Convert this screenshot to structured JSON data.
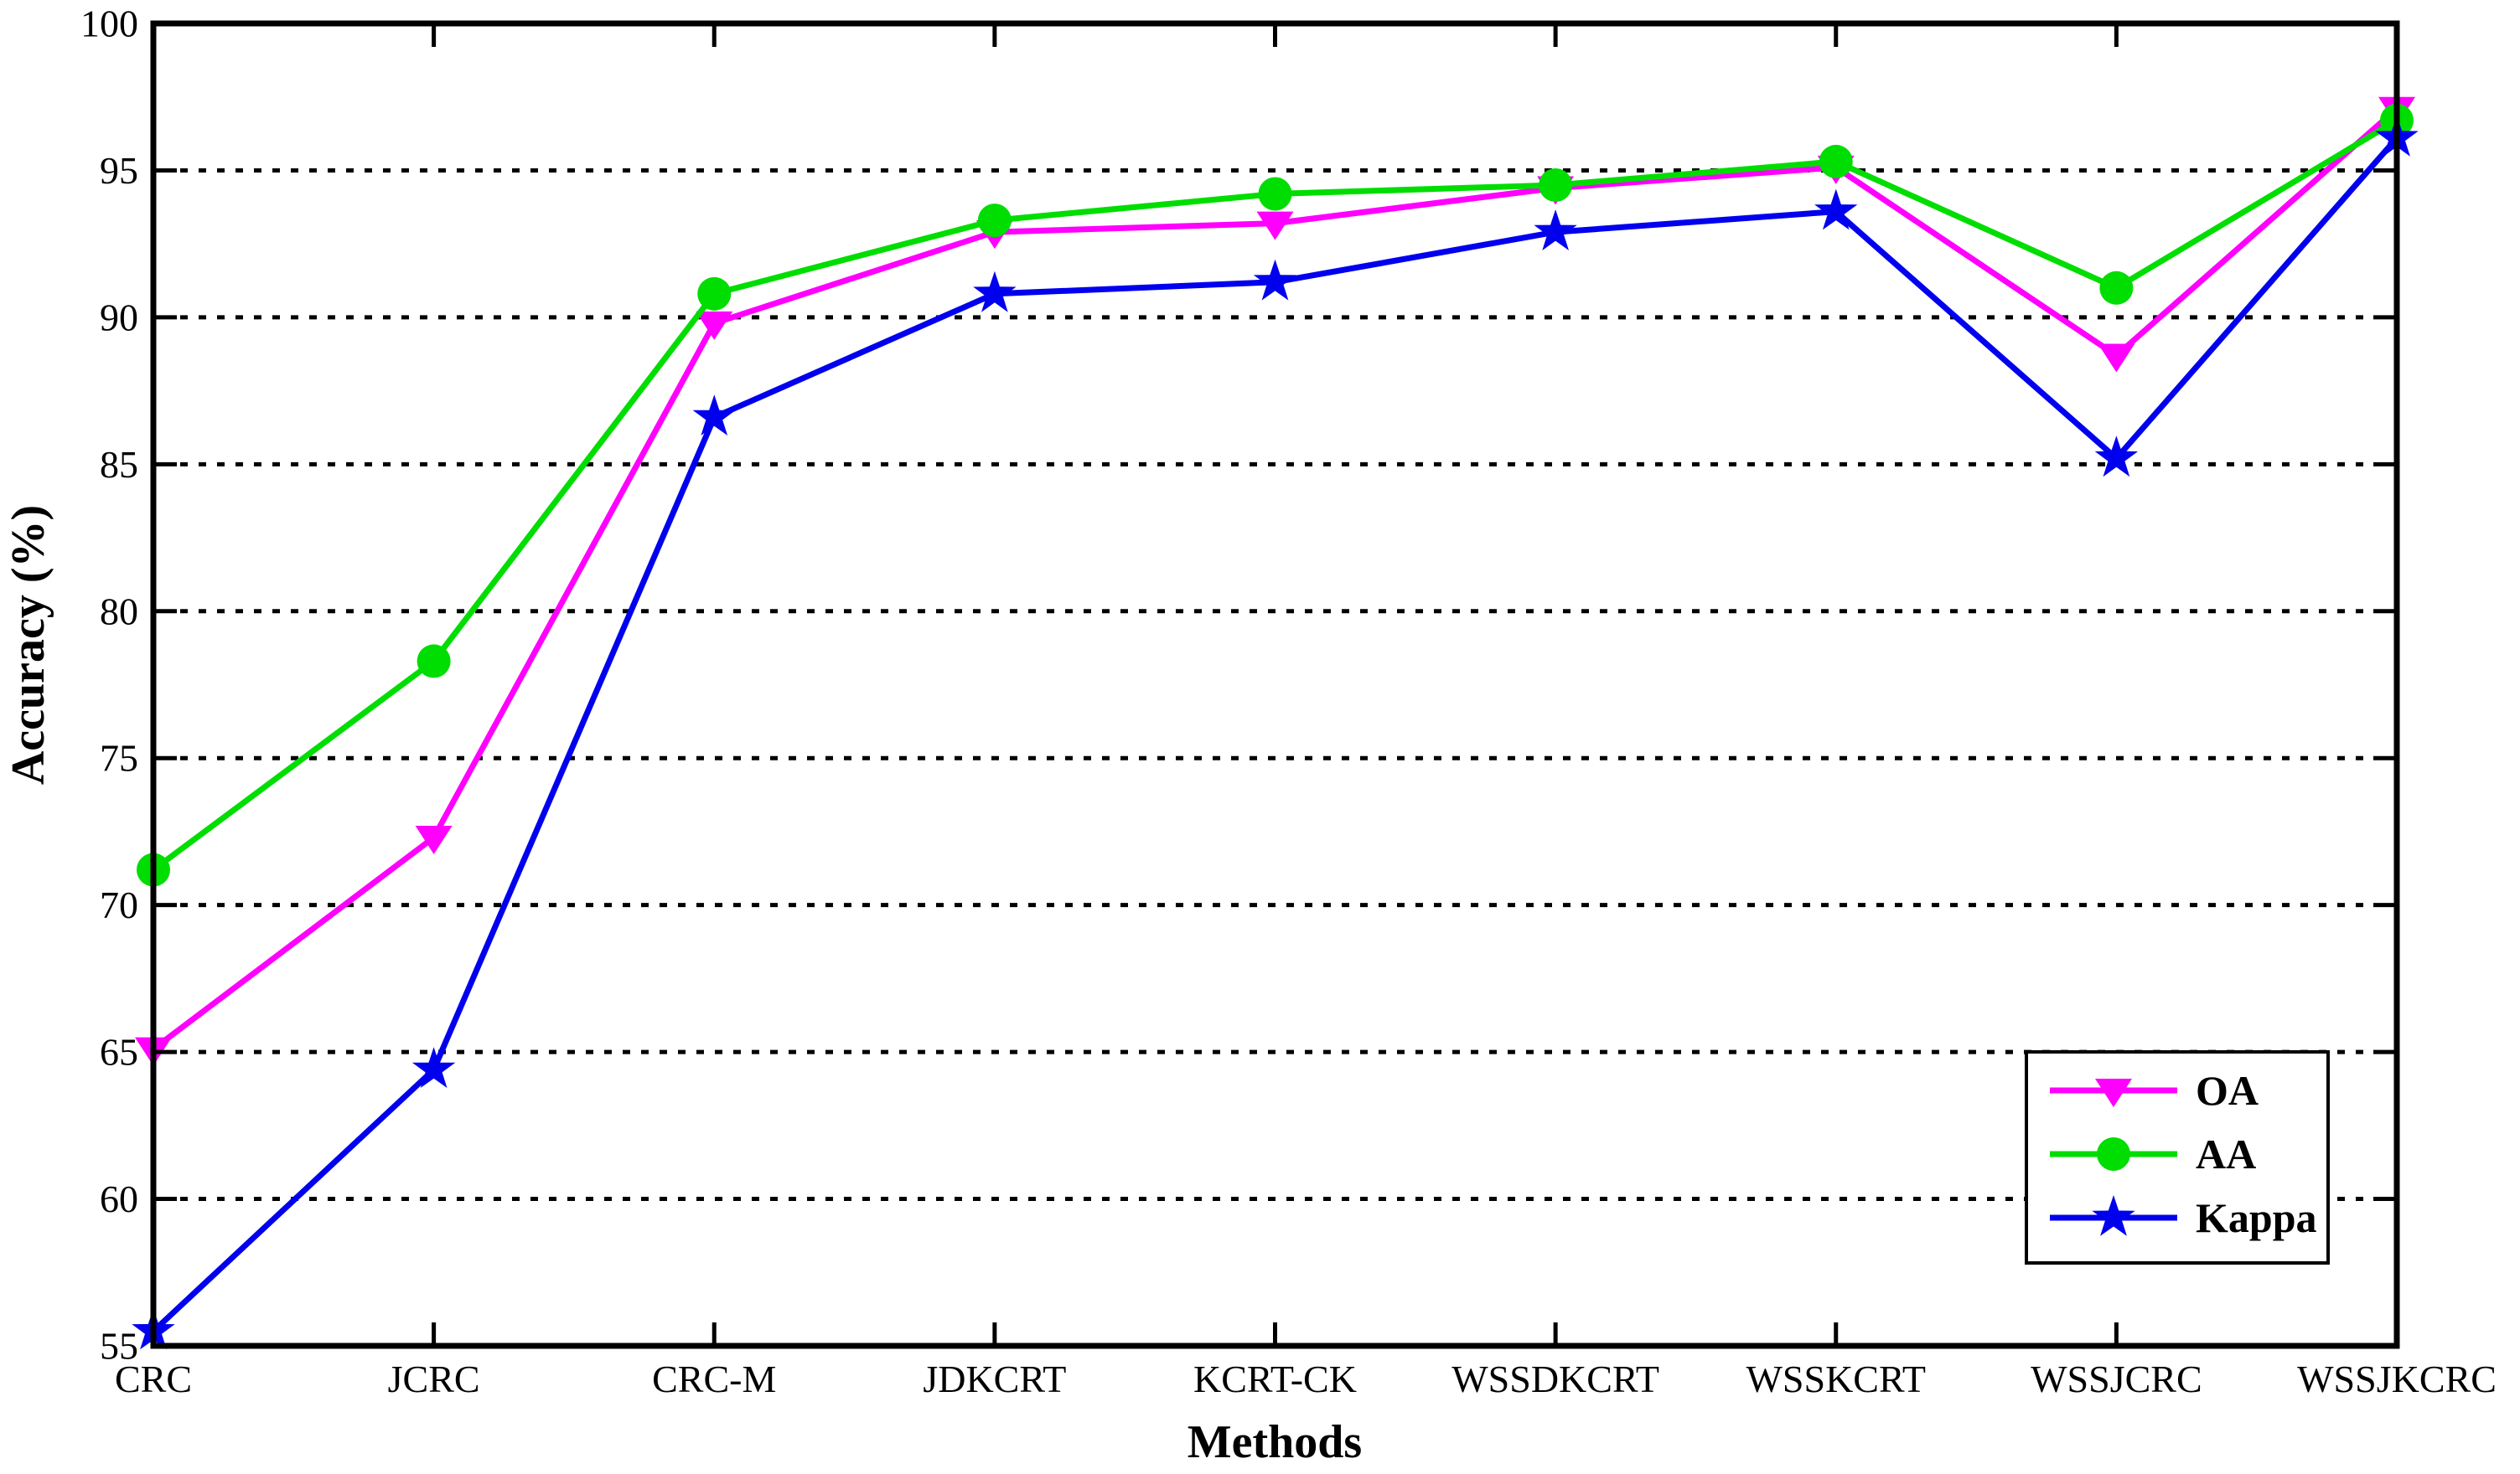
{
  "figure": {
    "background": "#FFFFFF",
    "axis_color": "#000000"
  },
  "chart_data": {
    "type": "line",
    "title": "",
    "xlabel": "Methods",
    "ylabel": "Accuracy (%)",
    "ylim": [
      55,
      100
    ],
    "yticks": [
      55,
      60,
      65,
      70,
      75,
      80,
      85,
      90,
      95,
      100
    ],
    "grid": "horizontal dotted, at 60 through 95",
    "legend_position": "inside lower right",
    "categories": [
      "CRC",
      "JCRC",
      "CRC-M",
      "JDKCRT",
      "KCRT-CK",
      "WSSDKCRT",
      "WSSKCRT",
      "WSSJCRC",
      "WSSJKCRC"
    ],
    "series": [
      {
        "name": "OA",
        "color": "#FF00FF",
        "marker": "triangle-down",
        "values": [
          65.1,
          72.3,
          89.8,
          92.9,
          93.2,
          94.4,
          95.1,
          88.7,
          97.1
        ]
      },
      {
        "name": "AA",
        "color": "#00DD00",
        "marker": "circle",
        "values": [
          71.2,
          78.3,
          90.8,
          93.3,
          94.2,
          94.5,
          95.3,
          91.0,
          96.7
        ]
      },
      {
        "name": "Kappa",
        "color": "#0000EE",
        "marker": "star",
        "values": [
          55.5,
          64.4,
          86.6,
          90.8,
          91.2,
          92.9,
          93.6,
          85.2,
          96.1
        ]
      }
    ]
  }
}
